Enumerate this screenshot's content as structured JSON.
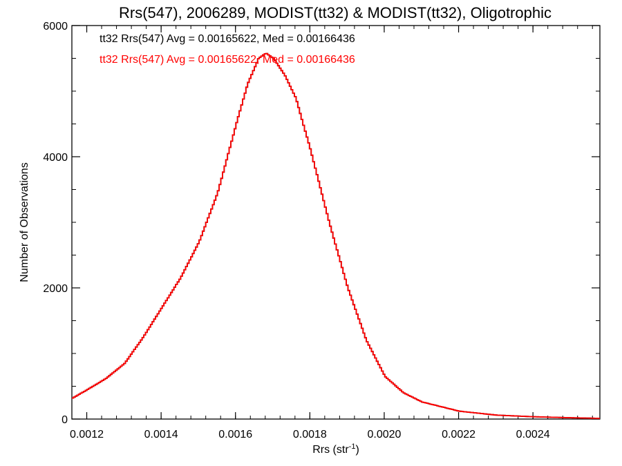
{
  "chart_data": {
    "type": "line",
    "title": "Rrs(547), 2006289, MODIST(tt32) & MODIST(tt32), Oligotrophic",
    "xlabel": "Rrs (str",
    "xlabel_sup": "-1",
    "xlabel_close": ")",
    "ylabel": "Number of Observations",
    "xlim": [
      0.00116,
      0.00258
    ],
    "ylim": [
      0,
      6000
    ],
    "x_ticks": [
      0.0012,
      0.0014,
      0.0016,
      0.0018,
      0.002,
      0.0022,
      0.0024
    ],
    "x_tick_labels": [
      "0.0012",
      "0.0014",
      "0.0016",
      "0.0018",
      "0.0020",
      "0.0022",
      "0.0024"
    ],
    "y_ticks": [
      0,
      2000,
      4000,
      6000
    ],
    "y_tick_labels": [
      "0",
      "2000",
      "4000",
      "6000"
    ],
    "grid": false,
    "annotations": [
      {
        "text": "tt32 Rrs(547) Avg = 0.00165622, Med = 0.00166436",
        "color": "#000000"
      },
      {
        "text": "tt32 Rrs(547) Avg = 0.00165622, Med = 0.00166436",
        "color": "#ff0000"
      }
    ],
    "series": [
      {
        "name": "tt32 (black)",
        "color": "#000000",
        "step": true,
        "x": [
          0.00116,
          0.0012,
          0.00125,
          0.0013,
          0.00135,
          0.0014,
          0.00145,
          0.0015,
          0.00155,
          0.0016,
          0.00163,
          0.00166,
          0.00168,
          0.0017,
          0.00173,
          0.00176,
          0.0018,
          0.00185,
          0.0019,
          0.00195,
          0.002,
          0.00205,
          0.0021,
          0.0022,
          0.0023,
          0.0024,
          0.0025,
          0.00258
        ],
        "y": [
          320,
          450,
          620,
          850,
          1250,
          1700,
          2150,
          2700,
          3450,
          4500,
          5100,
          5500,
          5580,
          5500,
          5250,
          4900,
          4100,
          3000,
          2000,
          1200,
          650,
          400,
          260,
          120,
          60,
          35,
          20,
          10
        ]
      },
      {
        "name": "tt32 (red)",
        "color": "#ff0000",
        "step": true,
        "x": [
          0.00116,
          0.0012,
          0.00125,
          0.0013,
          0.00135,
          0.0014,
          0.00145,
          0.0015,
          0.00155,
          0.0016,
          0.00163,
          0.00166,
          0.00168,
          0.0017,
          0.00173,
          0.00176,
          0.0018,
          0.00185,
          0.0019,
          0.00195,
          0.002,
          0.00205,
          0.0021,
          0.0022,
          0.0023,
          0.0024,
          0.0025,
          0.00258
        ],
        "y": [
          320,
          450,
          620,
          850,
          1250,
          1700,
          2150,
          2700,
          3450,
          4500,
          5100,
          5500,
          5580,
          5500,
          5250,
          4900,
          4100,
          3000,
          2000,
          1200,
          650,
          400,
          260,
          120,
          60,
          35,
          20,
          10
        ]
      }
    ]
  }
}
